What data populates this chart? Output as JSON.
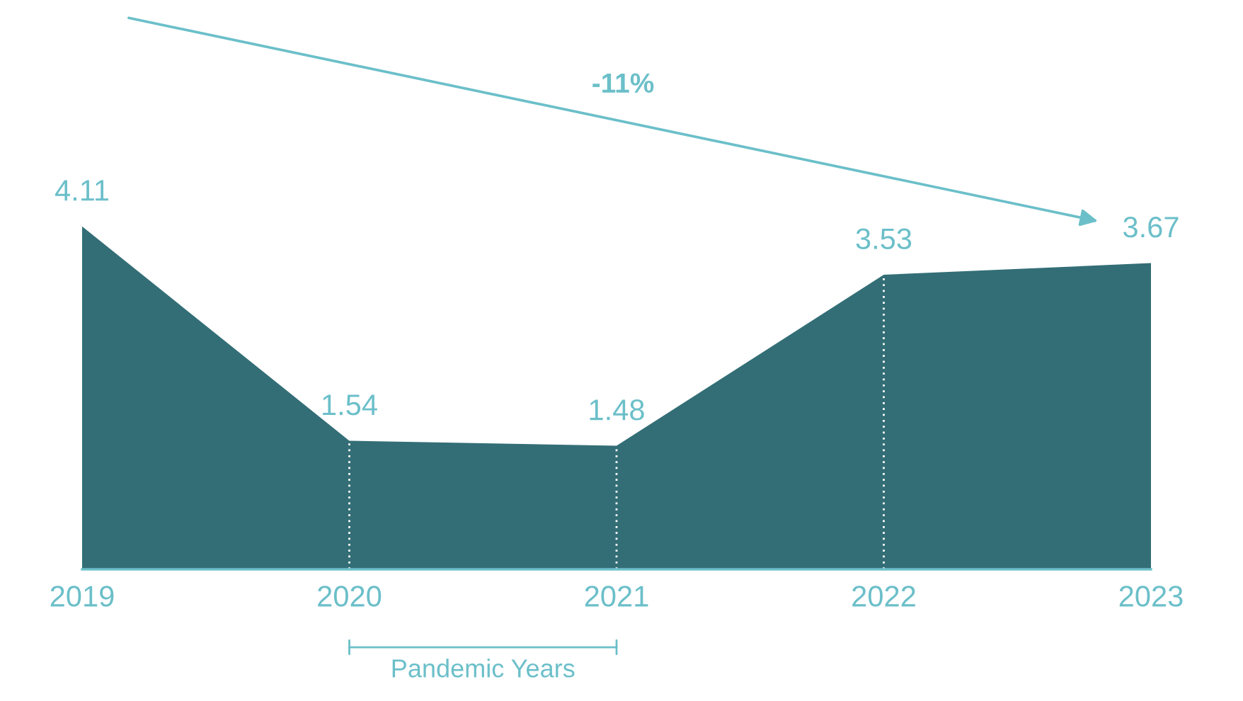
{
  "chart_data": {
    "type": "area",
    "tick_labels": "x",
    "categories": [
      "2019",
      "2020",
      "2021",
      "2022",
      "2023"
    ],
    "series": [
      {
        "color": "#336e76",
        "values": [
          4.11,
          1.54,
          1.48,
          3.53,
          3.67
        ]
      }
    ],
    "data_labels": true,
    "grid": "x",
    "legend": false,
    "annotations": [
      "-11%",
      "Pandemic Years"
    ]
  }
}
